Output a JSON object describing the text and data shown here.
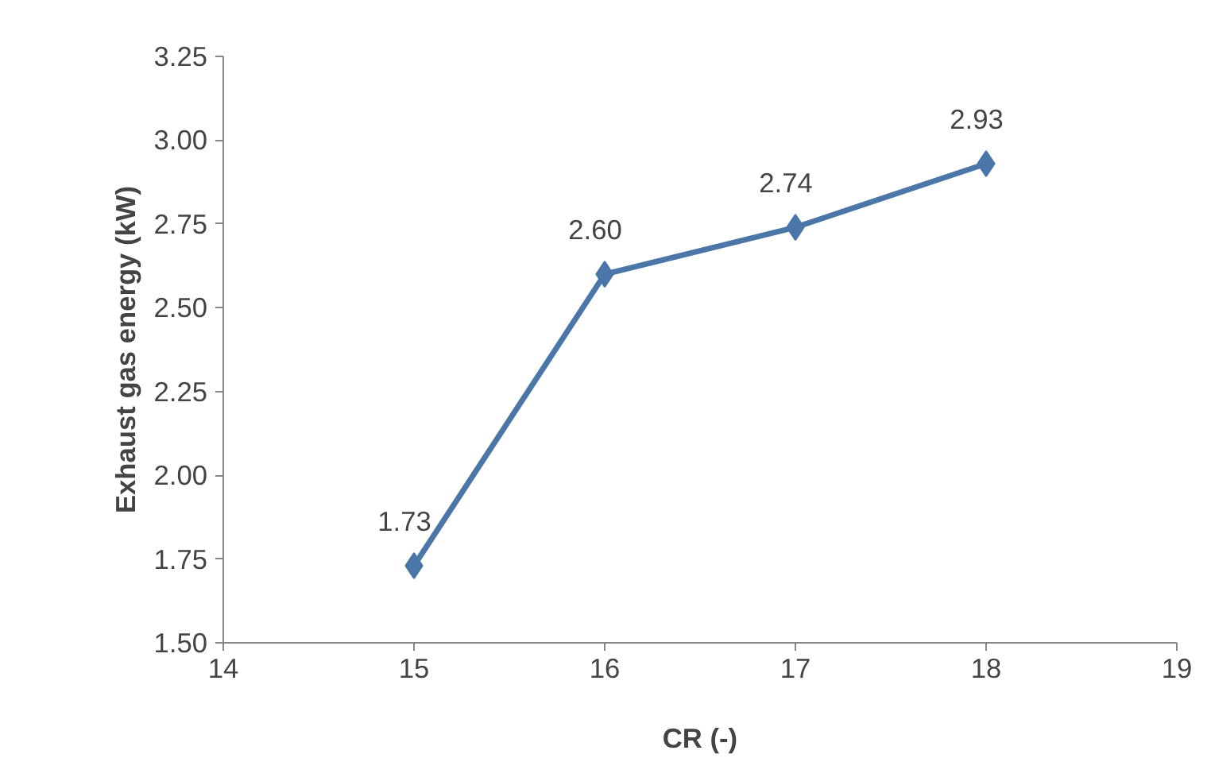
{
  "chart_data": {
    "type": "line",
    "xlabel": "CR (-)",
    "ylabel": "Exhaust gas energy (kW)",
    "x": [
      15,
      16,
      17,
      18
    ],
    "series": [
      {
        "color": "#4a76a8",
        "values": [
          1.73,
          2.6,
          2.74,
          2.93
        ],
        "value_labels": [
          "1.73",
          "2.60",
          "2.74",
          "2.93"
        ]
      }
    ],
    "xlim": [
      14,
      19
    ],
    "xticks": [
      14,
      15,
      16,
      17,
      18,
      19
    ],
    "ylim": [
      1.5,
      3.25
    ],
    "yticks": [
      {
        "value": 1.5,
        "label": "1.50"
      },
      {
        "value": 1.75,
        "label": "1.75"
      },
      {
        "value": 2.0,
        "label": "2.00"
      },
      {
        "value": 2.25,
        "label": "2.25"
      },
      {
        "value": 2.5,
        "label": "2.50"
      },
      {
        "value": 2.75,
        "label": "2.75"
      },
      {
        "value": 3.0,
        "label": "3.00"
      },
      {
        "value": 3.25,
        "label": "3.25"
      }
    ],
    "grid": false,
    "marker": "diamond",
    "line_style": "solid"
  }
}
